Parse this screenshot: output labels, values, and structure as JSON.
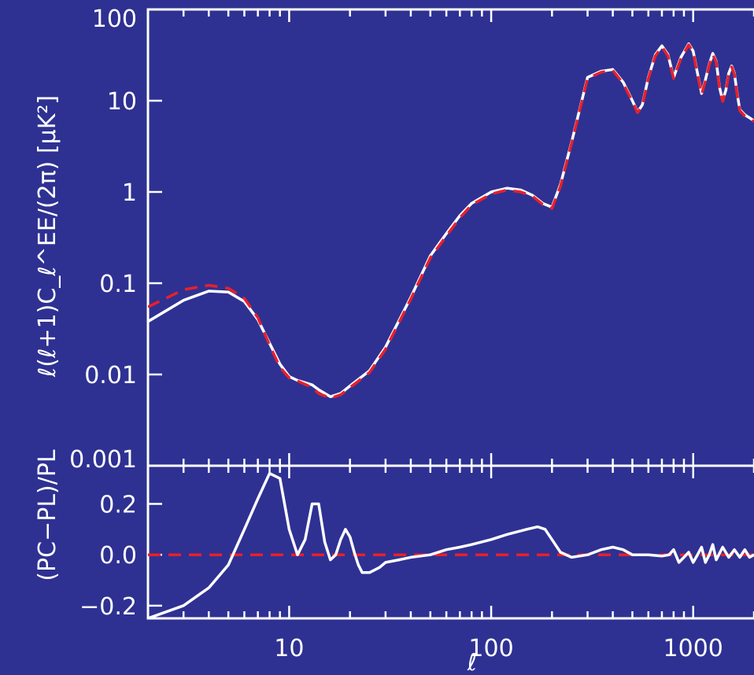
{
  "chart_data": [
    {
      "type": "line",
      "panel": "top",
      "ylabel": "ℓ(ℓ+1)C_ℓ^EE/(2π)  [μK²]",
      "yscale": "log",
      "xscale": "log",
      "xlim": [
        2,
        2000
      ],
      "ylim": [
        0.001,
        100
      ],
      "yticks": [
        {
          "value": 100,
          "label": "100"
        },
        {
          "value": 10,
          "label": "10"
        },
        {
          "value": 1,
          "label": "1"
        },
        {
          "value": 0.1,
          "label": "0.1"
        },
        {
          "value": 0.01,
          "label": "0.01"
        },
        {
          "value": 0.001,
          "label": "0.001"
        }
      ],
      "series": [
        {
          "style": "solid",
          "color": "#ffffff",
          "x": [
            2,
            3,
            4,
            5,
            6,
            7,
            8,
            9,
            10,
            11,
            13,
            14,
            16,
            18,
            20,
            25,
            30,
            40,
            50,
            60,
            70,
            80,
            100,
            120,
            140,
            160,
            180,
            200,
            220,
            250,
            300,
            350,
            400,
            450,
            500,
            530,
            560,
            600,
            650,
            700,
            750,
            800,
            870,
            950,
            1000,
            1050,
            1100,
            1150,
            1200,
            1250,
            1300,
            1350,
            1400,
            1450,
            1500,
            1550,
            1600,
            1650,
            1700,
            1800,
            1900,
            2000
          ],
          "y": [
            0.038,
            0.065,
            0.082,
            0.08,
            0.063,
            0.04,
            0.022,
            0.013,
            0.0095,
            0.0086,
            0.0077,
            0.0068,
            0.0057,
            0.0062,
            0.0075,
            0.011,
            0.02,
            0.07,
            0.2,
            0.35,
            0.55,
            0.75,
            1.0,
            1.1,
            1.05,
            0.92,
            0.75,
            0.68,
            1.2,
            3.5,
            18,
            21,
            22,
            16,
            10,
            7.5,
            9,
            18,
            32,
            40,
            32,
            18,
            30,
            42,
            35,
            20,
            12,
            17,
            25,
            33,
            27,
            14,
            10,
            13,
            20,
            24,
            20,
            12,
            8,
            7,
            6.5,
            6
          ]
        },
        {
          "style": "dashed",
          "color": "#e8202a",
          "x": [
            2,
            3,
            4,
            5,
            6,
            7,
            8,
            9,
            10,
            11,
            13,
            14,
            16,
            18,
            20,
            25,
            30,
            40,
            50,
            60,
            70,
            80,
            100,
            120,
            140,
            160,
            180,
            200,
            220,
            250,
            300,
            350,
            400,
            450,
            500,
            530,
            560,
            600,
            650,
            700,
            750,
            800,
            870,
            950,
            1000,
            1050,
            1100,
            1150,
            1200,
            1250,
            1300,
            1350,
            1400,
            1450,
            1500,
            1550,
            1600,
            1650,
            1700,
            1800,
            1900,
            2000
          ],
          "y": [
            0.055,
            0.085,
            0.095,
            0.088,
            0.068,
            0.042,
            0.021,
            0.012,
            0.0092,
            0.0085,
            0.0072,
            0.0062,
            0.0055,
            0.006,
            0.0072,
            0.0105,
            0.019,
            0.067,
            0.19,
            0.33,
            0.52,
            0.72,
            0.95,
            1.05,
            1.0,
            0.9,
            0.73,
            0.66,
            1.15,
            3.4,
            17.5,
            20.5,
            21.5,
            15.5,
            9.8,
            7.4,
            8.8,
            17.5,
            31,
            39,
            31,
            17.5,
            29,
            41,
            34,
            19.5,
            11.7,
            16.5,
            24.5,
            32,
            26.5,
            13.7,
            9.8,
            12.7,
            19.5,
            23.5,
            19.5,
            11.7,
            7.8,
            6.8,
            6.4,
            5.9
          ]
        }
      ]
    },
    {
      "type": "line",
      "panel": "bottom",
      "xlabel": "ℓ",
      "ylabel": "(PC−PL)/PL",
      "xscale": "log",
      "xlim": [
        2,
        2000
      ],
      "ylim": [
        -0.25,
        0.35
      ],
      "xticks": [
        {
          "value": 10,
          "label": "10"
        },
        {
          "value": 100,
          "label": "100"
        },
        {
          "value": 1000,
          "label": "1000"
        }
      ],
      "yticks": [
        {
          "value": 0.2,
          "label": "0.2"
        },
        {
          "value": 0.0,
          "label": "0.0"
        },
        {
          "value": -0.2,
          "label": "−0.2"
        }
      ],
      "series": [
        {
          "style": "solid",
          "color": "#ffffff",
          "x": [
            2,
            3,
            4,
            5,
            6,
            7,
            8,
            9,
            10,
            11,
            12,
            13,
            14,
            15,
            16,
            17,
            18,
            19,
            20,
            21,
            22,
            23,
            25,
            28,
            30,
            35,
            40,
            50,
            60,
            70,
            80,
            100,
            120,
            150,
            170,
            185,
            200,
            220,
            250,
            300,
            350,
            400,
            450,
            500,
            600,
            700,
            760,
            800,
            850,
            900,
            950,
            1000,
            1050,
            1100,
            1150,
            1200,
            1250,
            1300,
            1400,
            1500,
            1600,
            1700,
            1800,
            1900,
            2000
          ],
          "y": [
            -0.25,
            -0.2,
            -0.13,
            -0.04,
            0.1,
            0.22,
            0.32,
            0.3,
            0.1,
            0.0,
            0.06,
            0.2,
            0.2,
            0.05,
            -0.02,
            0.0,
            0.06,
            0.1,
            0.07,
            0.01,
            -0.04,
            -0.07,
            -0.07,
            -0.05,
            -0.03,
            -0.02,
            -0.01,
            0.0,
            0.02,
            0.03,
            0.04,
            0.06,
            0.08,
            0.1,
            0.11,
            0.1,
            0.06,
            0.01,
            -0.01,
            0.0,
            0.02,
            0.03,
            0.02,
            0.0,
            0.0,
            -0.005,
            0.0,
            0.02,
            -0.03,
            -0.01,
            0.01,
            -0.03,
            0.0,
            0.03,
            -0.03,
            0.0,
            0.04,
            -0.02,
            0.03,
            -0.01,
            0.02,
            -0.01,
            0.02,
            -0.01,
            0.0
          ]
        },
        {
          "style": "dashed",
          "color": "#e8202a",
          "x": [
            2,
            2000
          ],
          "y": [
            0.0,
            0.0
          ]
        }
      ]
    }
  ]
}
